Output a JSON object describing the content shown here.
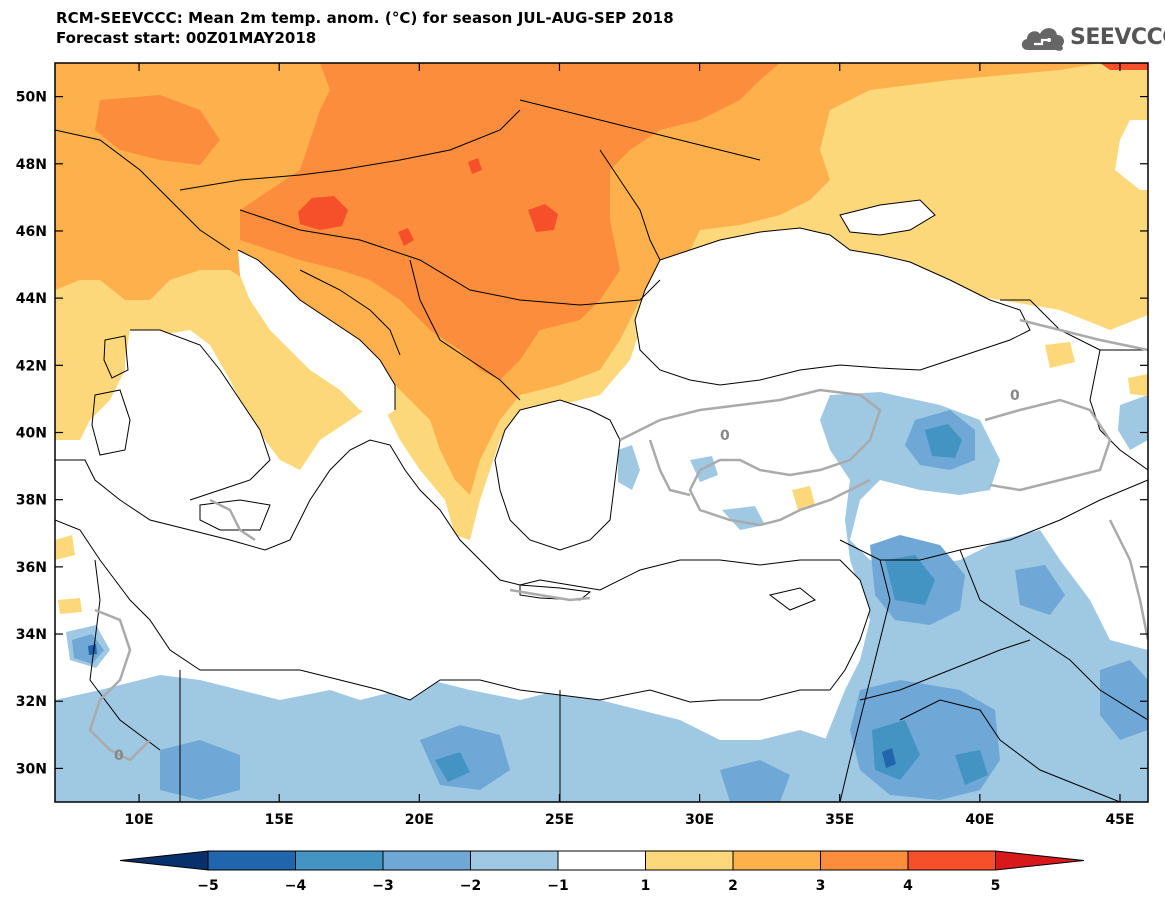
{
  "header": {
    "title": "RCM-SEEVCCC: Mean 2m temp. anom. (°C) for season JUL-AUG-SEP 2018",
    "subtitle": "Forecast start: 00Z01MAY2018",
    "logo_text": "SEEVCCC"
  },
  "map": {
    "lon_range": [
      7,
      46
    ],
    "lat_range": [
      29,
      51
    ],
    "x_ticks": [
      "10E",
      "15E",
      "20E",
      "25E",
      "30E",
      "35E",
      "40E",
      "45E"
    ],
    "y_ticks": [
      "30N",
      "32N",
      "34N",
      "36N",
      "38N",
      "40N",
      "42N",
      "44N",
      "46N",
      "48N",
      "50N"
    ],
    "contour_label": "0"
  },
  "colorbar": {
    "labels": [
      "−5",
      "−4",
      "−3",
      "−2",
      "−1",
      "1",
      "2",
      "3",
      "4",
      "5"
    ],
    "colors": [
      "#08306b",
      "#2166ac",
      "#4393c3",
      "#6fa8d6",
      "#9fc8e3",
      "#ffffff",
      "#fdd87a",
      "#fdb04b",
      "#fc8d3c",
      "#f5502a",
      "#d7191c"
    ]
  },
  "palette": {
    "land_white": "#ffffff",
    "sea": "#ffffff",
    "border": "#000000",
    "contour": "#aaaaaa"
  }
}
